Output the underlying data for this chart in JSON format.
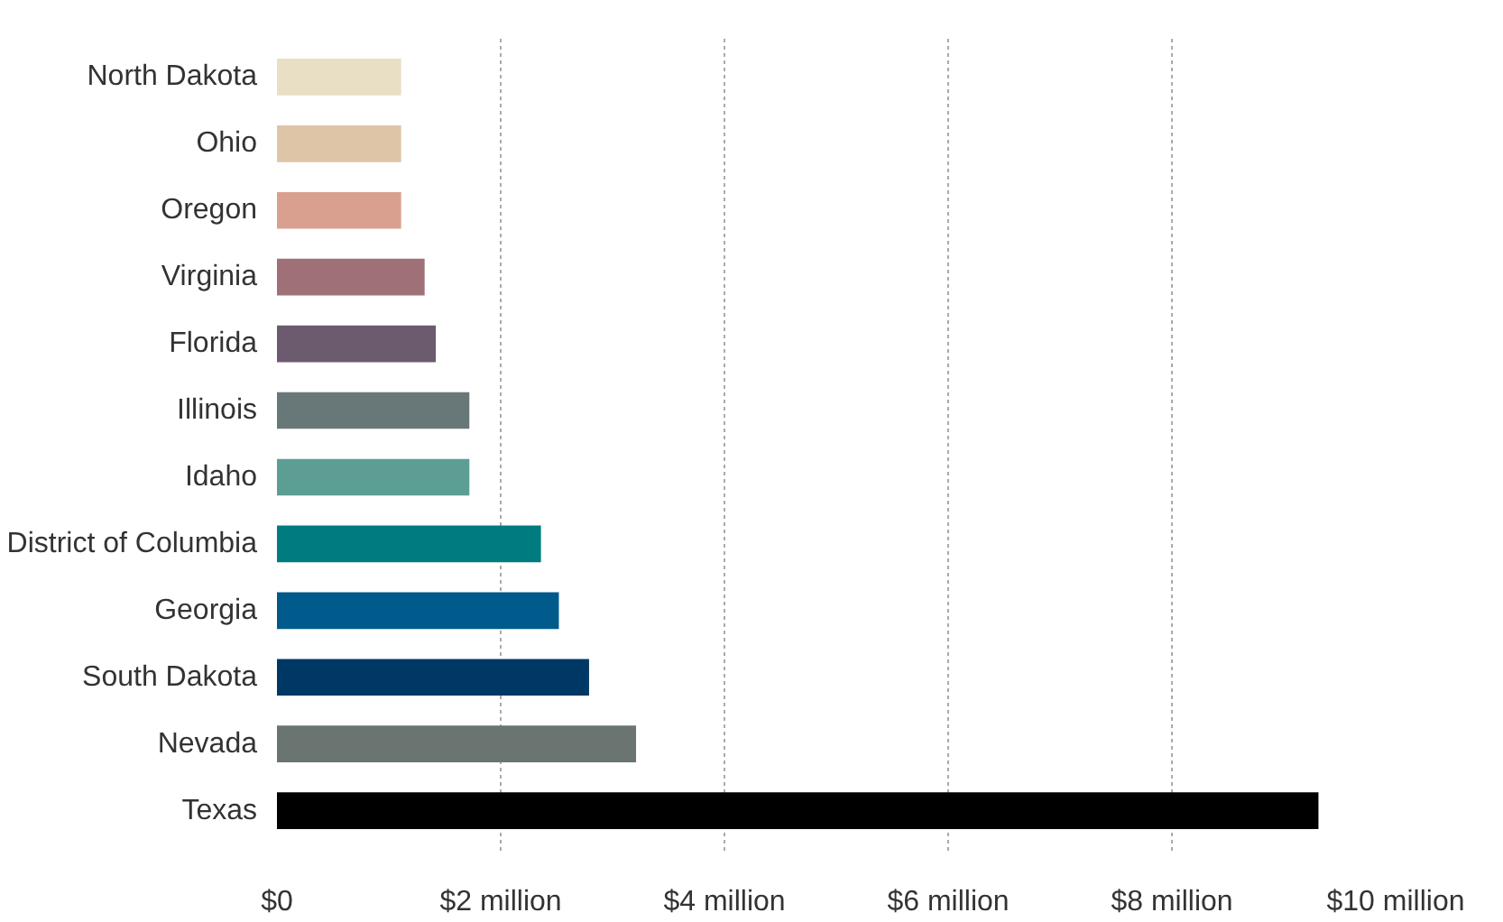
{
  "chart_data": {
    "type": "bar",
    "orientation": "horizontal",
    "categories": [
      "North Dakota",
      "Ohio",
      "Oregon",
      "Virginia",
      "Florida",
      "Illinois",
      "Idaho",
      "District of Columbia",
      "Georgia",
      "South Dakota",
      "Nevada",
      "Texas"
    ],
    "values": [
      1.11,
      1.11,
      1.11,
      1.32,
      1.42,
      1.72,
      1.72,
      2.36,
      2.52,
      2.79,
      3.21,
      9.31
    ],
    "colors": [
      "#e8dfc4",
      "#dfc5a8",
      "#d9a090",
      "#a07078",
      "#6c5b6e",
      "#687878",
      "#5c9e94",
      "#007b80",
      "#005a8c",
      "#003865",
      "#6a7470",
      "#000000"
    ],
    "xlim": [
      0,
      10
    ],
    "xticks": [
      {
        "value": 0,
        "label": "$0"
      },
      {
        "value": 2,
        "label": "$2 million"
      },
      {
        "value": 4,
        "label": "$4 million"
      },
      {
        "value": 6,
        "label": "$6 million"
      },
      {
        "value": 8,
        "label": "$8 million"
      },
      {
        "value": 10,
        "label": "$10 million"
      }
    ],
    "grid": "x"
  }
}
